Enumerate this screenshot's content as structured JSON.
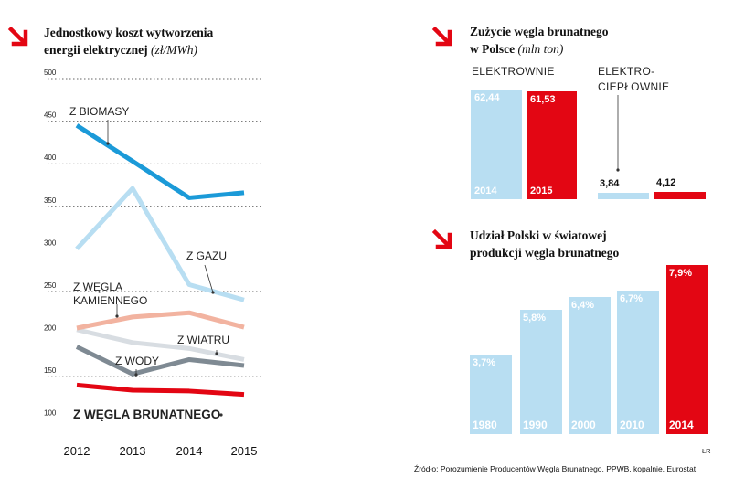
{
  "colors": {
    "red": "#e30613",
    "light_blue": "#b8def2",
    "blue": "#1b9ad8",
    "dark_grey": "#7f8a93",
    "pale_grey": "#d8dde2",
    "salmon": "#f2b3a0"
  },
  "icons": {
    "arrow": "red-diagonal-arrow-icon"
  },
  "left_chart": {
    "title_line1": "Jednostkowy koszt wytworzenia",
    "title_line2": "energii elektrycznej",
    "unit": "(zł/MWh)"
  },
  "right_top": {
    "title_line1": "Zużycie węgla brunatnego",
    "title_line2": "w Polsce",
    "unit": "(mln ton)",
    "group1_label": "ELEKTROWNIE",
    "group2_label_line1": "ELEKTRO-",
    "group2_label_line2": "CIEPŁOWNIE"
  },
  "right_bottom": {
    "title_line1": "Udział Polski w światowej",
    "title_line2": "produkcji węgla brunatnego"
  },
  "chart_data": [
    {
      "type": "line",
      "title": "Jednostkowy koszt wytworzenia energii elektrycznej (zł/MWh)",
      "x": [
        "2012",
        "2013",
        "2014",
        "2015"
      ],
      "ylim": [
        90,
        500
      ],
      "yticks": [
        "100",
        "150",
        "200",
        "250",
        "300",
        "350",
        "400",
        "450",
        "500"
      ],
      "grid": true,
      "series": [
        {
          "name": "Z BIOMASY",
          "color": "#1b9ad8",
          "values": [
            445,
            403,
            360,
            366
          ]
        },
        {
          "name": "Z GAZU",
          "color": "#b8def2",
          "values": [
            300,
            371,
            258,
            240
          ]
        },
        {
          "name": "Z WĘGLA KAMIENNEGO",
          "color": "#f2b3a0",
          "values": [
            207,
            220,
            225,
            208
          ]
        },
        {
          "name": "Z WIATRU",
          "color": "#d8dde2",
          "values": [
            205,
            190,
            183,
            170
          ]
        },
        {
          "name": "Z WODY",
          "color": "#7f8a93",
          "values": [
            185,
            153,
            170,
            163
          ]
        },
        {
          "name": "Z WĘGLA BRUNATNEGO",
          "color": "#e30613",
          "values": [
            140,
            134,
            133,
            129
          ]
        }
      ]
    },
    {
      "type": "bar",
      "title": "Zużycie węgla brunatnego w Polsce (mln ton)",
      "categories": [
        "2014",
        "2015"
      ],
      "groups": [
        "ELEKTROWNIE",
        "ELEKTROCIEPŁOWNIE"
      ],
      "series": [
        {
          "name": "2014",
          "color": "#b8def2",
          "values": [
            62.44,
            3.84
          ],
          "labels": [
            "62,44",
            "3,84"
          ]
        },
        {
          "name": "2015",
          "color": "#e30613",
          "values": [
            61.53,
            4.12
          ],
          "labels": [
            "61,53",
            "4,12"
          ]
        }
      ]
    },
    {
      "type": "bar",
      "title": "Udział Polski w światowej produkcji węgla brunatnego",
      "categories": [
        "1980",
        "1990",
        "2000",
        "2010",
        "2014"
      ],
      "values": [
        3.7,
        5.8,
        6.4,
        6.7,
        7.9
      ],
      "labels": [
        "3,7%",
        "5,8%",
        "6,4%",
        "6,7%",
        "7,9%"
      ],
      "colors": [
        "#b8def2",
        "#b8def2",
        "#b8def2",
        "#b8def2",
        "#e30613"
      ]
    }
  ],
  "source": "Źródło: Porozumienie Producentów Węgla Brunatnego, PPWB, kopalnie, Eurostat",
  "credit": "ŁR"
}
